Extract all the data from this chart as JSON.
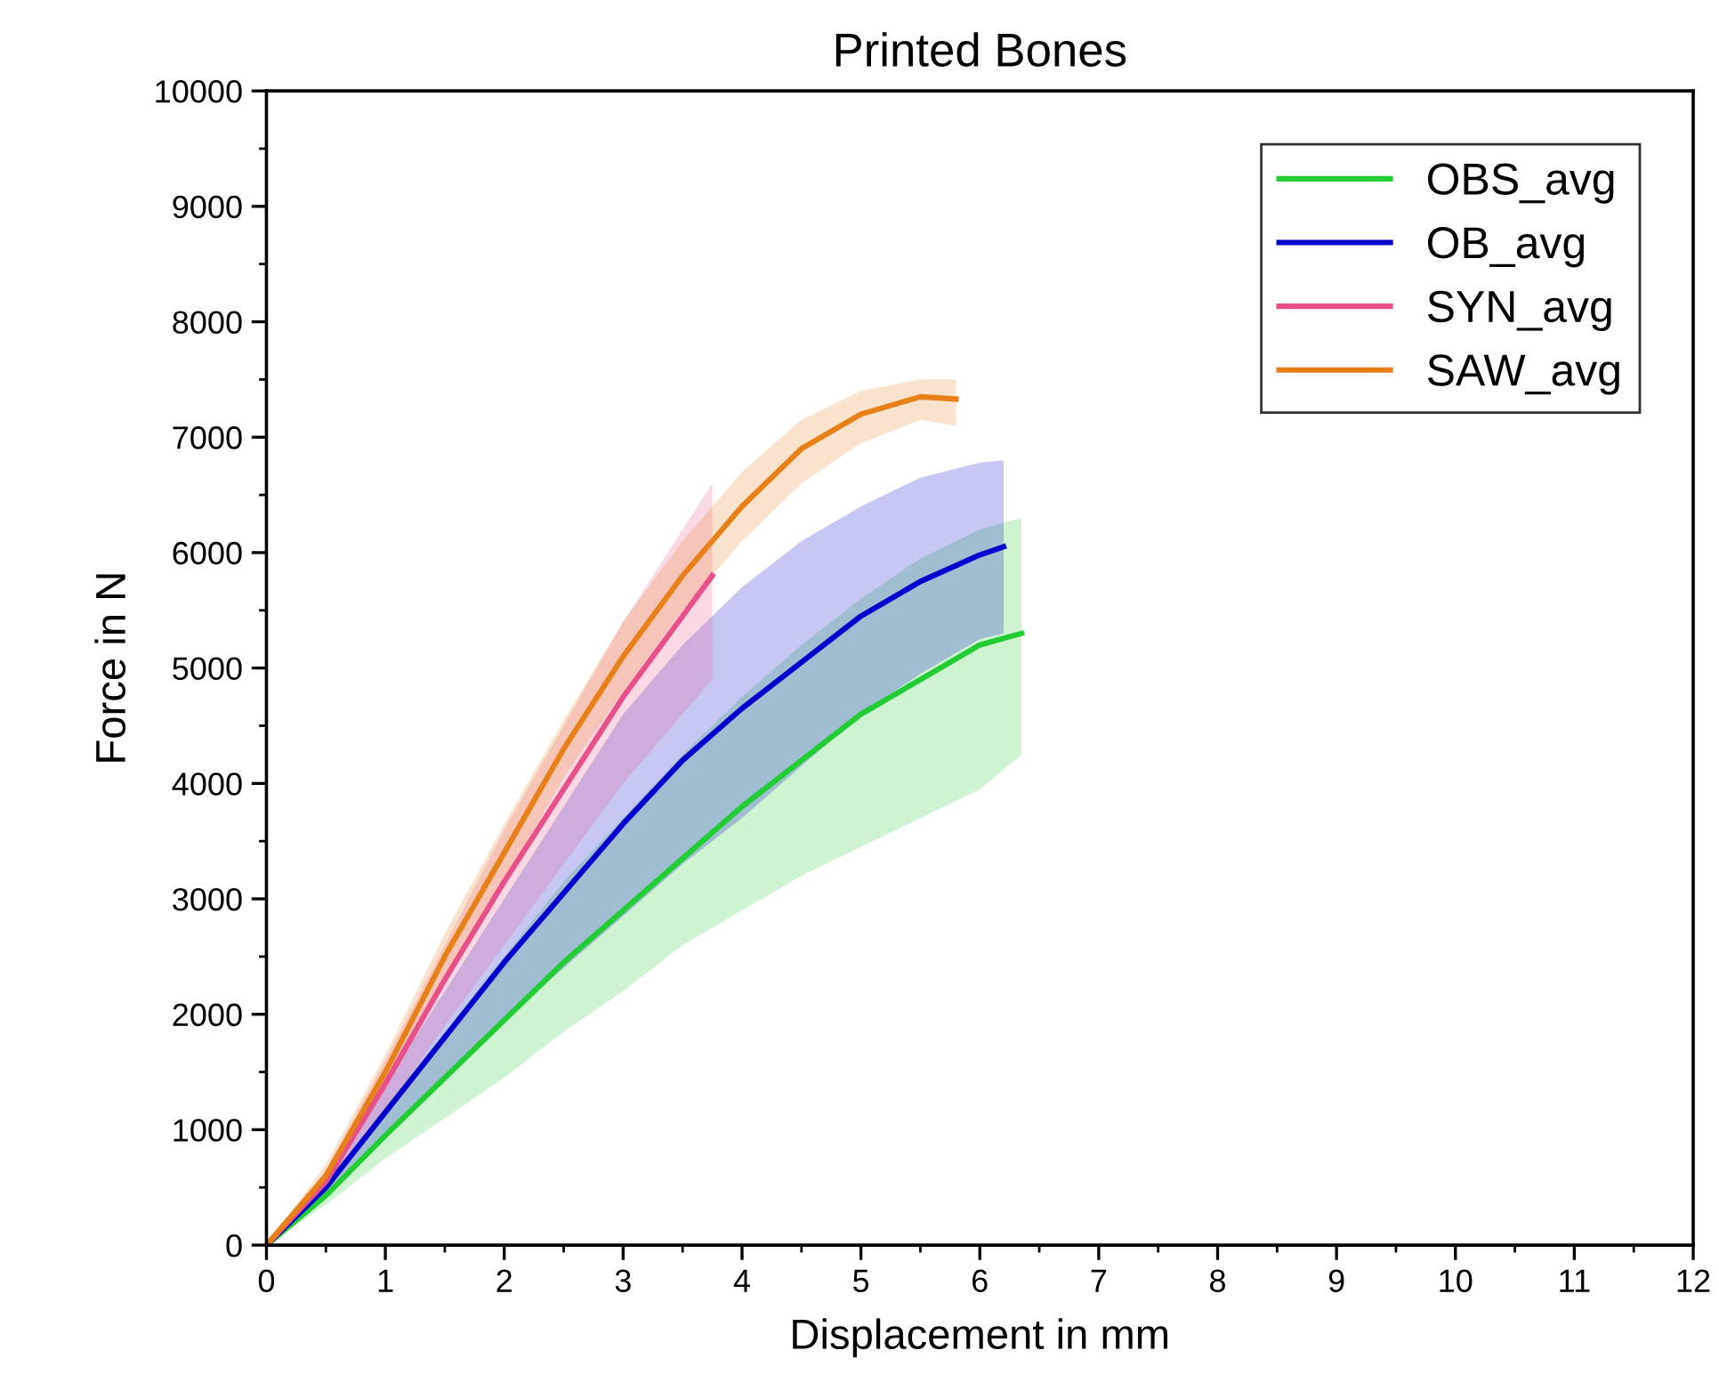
{
  "chart_data": {
    "type": "line",
    "title": "Printed Bones",
    "xlabel": "Displacement in mm",
    "ylabel": "Force in N",
    "xlim": [
      0,
      12
    ],
    "xticks": [
      0,
      1,
      2,
      3,
      4,
      5,
      6,
      7,
      8,
      9,
      10,
      11,
      12
    ],
    "ylim": [
      0,
      10000
    ],
    "yticks": [
      0,
      1000,
      2000,
      3000,
      4000,
      5000,
      6000,
      7000,
      8000,
      9000,
      10000
    ],
    "grid": false,
    "legend": "top right",
    "marker": "none",
    "line_style": "solid",
    "series": [
      {
        "name": "OBS_avg",
        "color": "#22cc33",
        "x": [
          0,
          0.5,
          1,
          1.5,
          2,
          2.5,
          3,
          3.5,
          4,
          4.5,
          5,
          5.5,
          6,
          6.35
        ],
        "values": [
          0,
          430,
          950,
          1450,
          1950,
          2450,
          2900,
          3350,
          3800,
          4200,
          4600,
          4900,
          5200,
          5300
        ],
        "upper": [
          0,
          520,
          1200,
          1850,
          2500,
          3150,
          3700,
          4250,
          4750,
          5200,
          5600,
          5950,
          6200,
          6300
        ],
        "lower": [
          0,
          350,
          750,
          1100,
          1450,
          1850,
          2200,
          2600,
          2900,
          3200,
          3450,
          3700,
          3950,
          4250
        ]
      },
      {
        "name": "OB_avg",
        "color": "#0000cc",
        "x": [
          0,
          0.5,
          1,
          1.5,
          2,
          2.5,
          3,
          3.5,
          4,
          4.5,
          5,
          5.5,
          6,
          6.2
        ],
        "values": [
          0,
          500,
          1150,
          1800,
          2450,
          3050,
          3650,
          4200,
          4650,
          5050,
          5450,
          5750,
          5980,
          6050
        ],
        "upper": [
          0,
          600,
          1400,
          2200,
          3000,
          3800,
          4600,
          5200,
          5700,
          6100,
          6400,
          6650,
          6780,
          6800
        ],
        "lower": [
          0,
          420,
          950,
          1450,
          1950,
          2400,
          2850,
          3300,
          3700,
          4150,
          4600,
          4950,
          5250,
          5300
        ]
      },
      {
        "name": "SYN_avg",
        "color": "#e8508a",
        "x": [
          0,
          0.5,
          1,
          1.5,
          2,
          2.5,
          3,
          3.5,
          3.75
        ],
        "values": [
          0,
          550,
          1400,
          2300,
          3150,
          3950,
          4750,
          5450,
          5800
        ],
        "upper": [
          0,
          650,
          1600,
          2600,
          3600,
          4500,
          5400,
          6200,
          6600
        ],
        "lower": [
          0,
          450,
          1150,
          1900,
          2600,
          3300,
          4000,
          4600,
          4900
        ]
      },
      {
        "name": "SAW_avg",
        "color": "#e8801a",
        "x": [
          0,
          0.5,
          1,
          1.5,
          2,
          2.5,
          3,
          3.5,
          4,
          4.5,
          5,
          5.5,
          5.8
        ],
        "values": [
          0,
          600,
          1500,
          2500,
          3400,
          4300,
          5100,
          5800,
          6400,
          6900,
          7200,
          7350,
          7330
        ],
        "upper": [
          0,
          700,
          1650,
          2700,
          3650,
          4550,
          5400,
          6100,
          6700,
          7150,
          7400,
          7500,
          7500
        ],
        "lower": [
          0,
          500,
          1350,
          2300,
          3150,
          4050,
          4800,
          5500,
          6100,
          6600,
          6950,
          7150,
          7100
        ]
      }
    ]
  }
}
